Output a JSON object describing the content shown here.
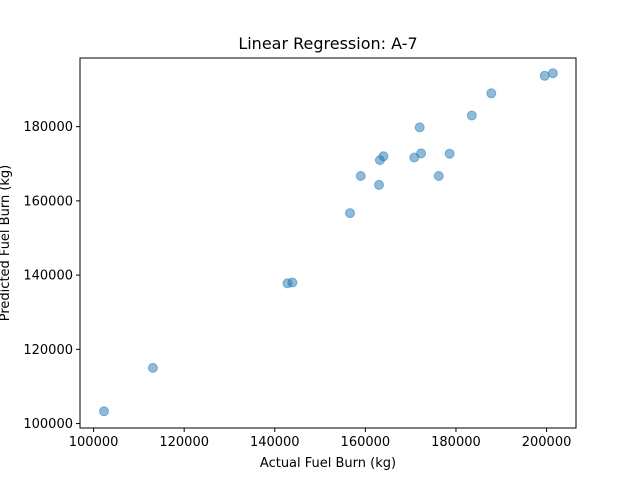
{
  "chart_data": {
    "type": "scatter",
    "title": "Linear Regression: A-7",
    "xlabel": "Actual Fuel Burn (kg)",
    "ylabel": "Predicted Fuel Burn (kg)",
    "xlim": [
      97000,
      206500
    ],
    "ylim": [
      98800,
      198500
    ],
    "xticks": [
      100000,
      120000,
      140000,
      160000,
      180000,
      200000
    ],
    "yticks": [
      100000,
      120000,
      140000,
      160000,
      180000
    ],
    "grid": false,
    "legend": "none",
    "marker_color": "#1f77b4",
    "marker_alpha": 0.5,
    "points": [
      {
        "x": 102300,
        "y": 103300
      },
      {
        "x": 113100,
        "y": 115000
      },
      {
        "x": 142800,
        "y": 137800
      },
      {
        "x": 143900,
        "y": 138000
      },
      {
        "x": 156600,
        "y": 156700
      },
      {
        "x": 159000,
        "y": 166700
      },
      {
        "x": 163000,
        "y": 164300
      },
      {
        "x": 163200,
        "y": 171000
      },
      {
        "x": 164000,
        "y": 172000
      },
      {
        "x": 170800,
        "y": 171700
      },
      {
        "x": 172000,
        "y": 179800
      },
      {
        "x": 172300,
        "y": 172800
      },
      {
        "x": 176200,
        "y": 166700
      },
      {
        "x": 178600,
        "y": 172700
      },
      {
        "x": 183500,
        "y": 183000
      },
      {
        "x": 187800,
        "y": 189000
      },
      {
        "x": 199600,
        "y": 193700
      },
      {
        "x": 201400,
        "y": 194400
      }
    ]
  }
}
